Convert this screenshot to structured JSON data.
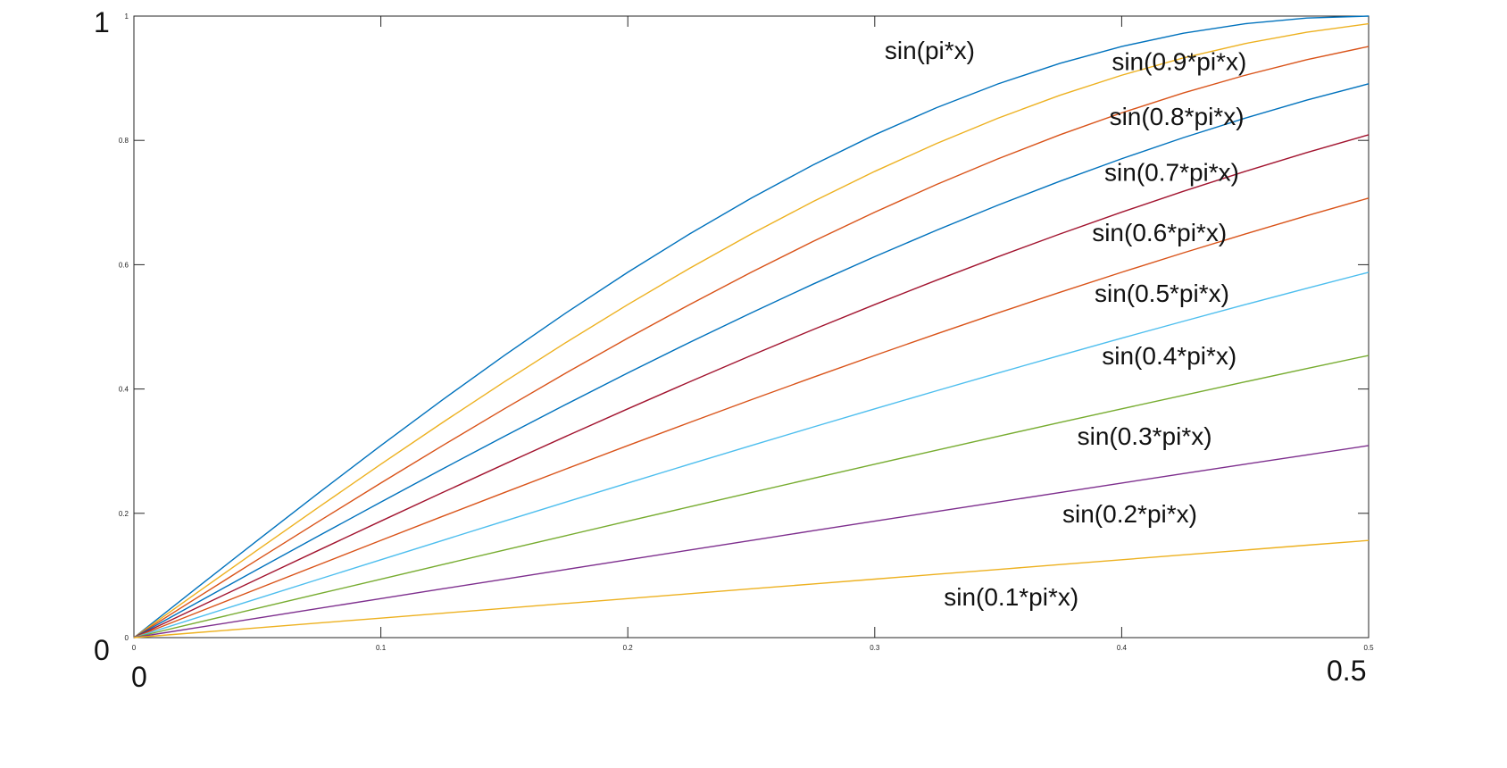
{
  "chart_data": {
    "type": "line",
    "title": "",
    "xlabel": "",
    "ylabel": "",
    "xlim": [
      0,
      0.5
    ],
    "ylim": [
      0,
      1
    ],
    "grid": false,
    "x_ticks": [
      0,
      0.1,
      0.2,
      0.3,
      0.4,
      0.5
    ],
    "x_tick_labels": [
      "0",
      "0.1",
      "0.2",
      "0.3",
      "0.4",
      "0.5"
    ],
    "y_ticks": [
      0,
      0.2,
      0.4,
      0.6,
      0.8,
      1
    ],
    "y_tick_labels": [
      "0",
      "0.2",
      "0.4",
      "0.6",
      "0.8",
      "1"
    ],
    "big_labels": {
      "y_max": "1",
      "y_min": "0",
      "x_min": "0",
      "x_max": "0.5"
    },
    "x": [
      0,
      0.025,
      0.05,
      0.075,
      0.1,
      0.125,
      0.15,
      0.175,
      0.2,
      0.225,
      0.25,
      0.275,
      0.3,
      0.325,
      0.35,
      0.375,
      0.4,
      0.425,
      0.45,
      0.475,
      0.5
    ],
    "series": [
      {
        "name": "sin(pi*x)",
        "color": "#0072BD",
        "k": 1.0,
        "label_pos": {
          "x": 0.304,
          "y": 0.931
        },
        "values": [
          0,
          0.0785,
          0.1564,
          0.2334,
          0.309,
          0.3827,
          0.454,
          0.5225,
          0.5878,
          0.6494,
          0.7071,
          0.7604,
          0.809,
          0.8526,
          0.891,
          0.9239,
          0.9511,
          0.9724,
          0.9877,
          0.9969,
          1.0
        ]
      },
      {
        "name": "sin(0.9*pi*x)",
        "color": "#EDB120",
        "k": 0.9,
        "label_pos": {
          "x": 0.396,
          "y": 0.913
        },
        "values": [
          0,
          0.0706,
          0.1409,
          0.2104,
          0.279,
          0.3461,
          0.4115,
          0.4749,
          0.5358,
          0.5941,
          0.6494,
          0.7015,
          0.7501,
          0.7949,
          0.8358,
          0.8726,
          0.9048,
          0.9327,
          0.9558,
          0.9741,
          0.9877
        ]
      },
      {
        "name": "sin(0.8*pi*x)",
        "color": "#D95319",
        "k": 0.8,
        "label_pos": {
          "x": 0.395,
          "y": 0.825
        },
        "values": [
          0,
          0.0628,
          0.1253,
          0.1874,
          0.2487,
          0.309,
          0.3681,
          0.4258,
          0.4818,
          0.5358,
          0.5878,
          0.6374,
          0.6845,
          0.729,
          0.7705,
          0.809,
          0.8443,
          0.8763,
          0.9048,
          0.9298,
          0.9511
        ]
      },
      {
        "name": "sin(0.7*pi*x)",
        "color": "#0072BD",
        "k": 0.7,
        "label_pos": {
          "x": 0.393,
          "y": 0.735
        },
        "values": [
          0,
          0.055,
          0.1097,
          0.1641,
          0.2181,
          0.2714,
          0.3239,
          0.3753,
          0.4258,
          0.4749,
          0.5225,
          0.5687,
          0.6129,
          0.6554,
          0.6959,
          0.7343,
          0.7705,
          0.8044,
          0.8358,
          0.8648,
          0.891
        ]
      },
      {
        "name": "sin(0.6*pi*x)",
        "color": "#A2142F",
        "k": 0.6,
        "label_pos": {
          "x": 0.388,
          "y": 0.638
        },
        "values": [
          0,
          0.0471,
          0.0941,
          0.1409,
          0.1874,
          0.2334,
          0.279,
          0.3239,
          0.3681,
          0.4115,
          0.454,
          0.4955,
          0.5358,
          0.575,
          0.6129,
          0.6494,
          0.6845,
          0.7181,
          0.7501,
          0.7804,
          0.809
        ]
      },
      {
        "name": "sin(0.5*pi*x)",
        "color": "#D95319",
        "k": 0.5,
        "label_pos": {
          "x": 0.389,
          "y": 0.54
        },
        "values": [
          0,
          0.0393,
          0.0785,
          0.1175,
          0.1564,
          0.1951,
          0.2334,
          0.2714,
          0.309,
          0.3461,
          0.3827,
          0.4187,
          0.454,
          0.4886,
          0.5225,
          0.5556,
          0.5878,
          0.6191,
          0.6494,
          0.6788,
          0.7071
        ]
      },
      {
        "name": "sin(0.4*pi*x)",
        "color": "#4DBEEE",
        "k": 0.4,
        "label_pos": {
          "x": 0.392,
          "y": 0.44
        },
        "values": [
          0,
          0.0314,
          0.0628,
          0.0941,
          0.1253,
          0.1564,
          0.1874,
          0.2181,
          0.2487,
          0.279,
          0.309,
          0.3387,
          0.3681,
          0.3971,
          0.4258,
          0.454,
          0.4818,
          0.509,
          0.5358,
          0.5621,
          0.5878
        ]
      },
      {
        "name": "sin(0.3*pi*x)",
        "color": "#77AC30",
        "k": 0.3,
        "label_pos": {
          "x": 0.382,
          "y": 0.31
        },
        "values": [
          0,
          0.0236,
          0.0471,
          0.0706,
          0.0941,
          0.1175,
          0.1409,
          0.1641,
          0.1874,
          0.2104,
          0.2334,
          0.2562,
          0.279,
          0.3015,
          0.3239,
          0.3461,
          0.3681,
          0.3899,
          0.4115,
          0.4329,
          0.454
        ]
      },
      {
        "name": "sin(0.2*pi*x)",
        "color": "#7E2F8E",
        "k": 0.2,
        "label_pos": {
          "x": 0.376,
          "y": 0.185
        },
        "values": [
          0,
          0.0157,
          0.0314,
          0.0471,
          0.0628,
          0.0785,
          0.0941,
          0.1097,
          0.1253,
          0.1409,
          0.1564,
          0.1719,
          0.1874,
          0.2028,
          0.2181,
          0.2334,
          0.2487,
          0.2639,
          0.279,
          0.294,
          0.309
        ]
      },
      {
        "name": "sin(0.1*pi*x)",
        "color": "#EDB120",
        "k": 0.1,
        "label_pos": {
          "x": 0.328,
          "y": 0.052
        },
        "values": [
          0,
          0.0079,
          0.0157,
          0.0236,
          0.0314,
          0.0393,
          0.0471,
          0.055,
          0.0628,
          0.0706,
          0.0785,
          0.0863,
          0.0941,
          0.1019,
          0.1097,
          0.1175,
          0.1253,
          0.1331,
          0.1409,
          0.1487,
          0.1564
        ]
      }
    ]
  }
}
